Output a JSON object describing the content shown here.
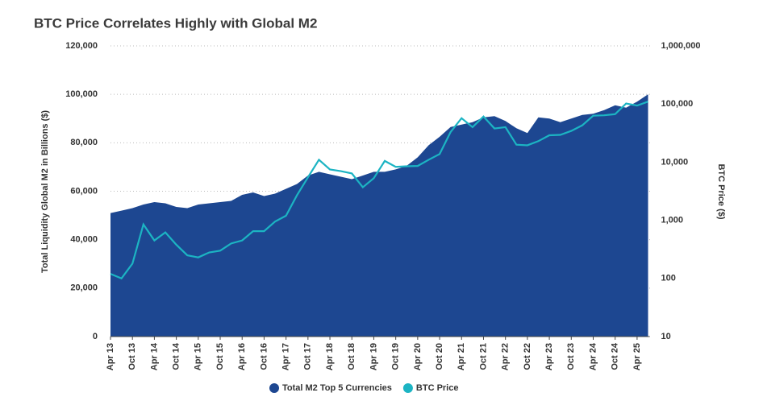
{
  "chart_data": {
    "type": "area-line",
    "title": "BTC Price Correlates Highly with Global M2",
    "y_label": "Total Liquidity Global M2 in Billions ($)",
    "y2_label": "BTC Price ($)",
    "y2_log": true,
    "grid": true,
    "legend": "bottom",
    "categories": [
      "Apr 13",
      null,
      "Oct 13",
      null,
      "Apr 14",
      null,
      "Oct 14",
      null,
      "Apr 15",
      null,
      "Oct 15",
      null,
      "Apr 16",
      null,
      "Oct 16",
      null,
      "Apr 17",
      null,
      "Oct 17",
      null,
      "Apr 18",
      null,
      "Oct 18",
      null,
      "Apr 19",
      null,
      "Oct 19",
      null,
      "Apr 20",
      null,
      "Oct 20",
      null,
      "Apr 21",
      null,
      "Oct 21",
      null,
      "Apr 22",
      null,
      "Oct 22",
      null,
      "Apr 23",
      null,
      "Oct 23",
      null,
      "Apr 24",
      null,
      "Oct 24",
      null,
      "Apr 25",
      null
    ],
    "series": [
      {
        "name": "Total M2 Top 5 Currencies",
        "color": "#1d4791",
        "kind": "area",
        "values": [
          51000,
          52000,
          53000,
          54500,
          55500,
          55000,
          53500,
          53000,
          54500,
          55000,
          55500,
          56000,
          58500,
          59500,
          58000,
          59000,
          61000,
          63000,
          66500,
          68000,
          67000,
          66000,
          65000,
          66500,
          68000,
          68000,
          69000,
          70500,
          74000,
          79000,
          82500,
          86500,
          87500,
          88500,
          90500,
          91000,
          89000,
          86000,
          84000,
          90500,
          90000,
          88500,
          90000,
          91500,
          92000,
          93500,
          95500,
          94500,
          97000,
          100000
        ]
      },
      {
        "name": "BTC Price",
        "color": "#1cb4c3",
        "kind": "line",
        "axis": "y2",
        "values": [
          120,
          100,
          180,
          850,
          450,
          620,
          380,
          250,
          230,
          280,
          300,
          400,
          450,
          650,
          650,
          950,
          1200,
          2700,
          5500,
          11000,
          7500,
          7000,
          6400,
          3700,
          5300,
          10500,
          8300,
          8500,
          8600,
          11000,
          13800,
          33000,
          57000,
          40000,
          61000,
          38000,
          40000,
          20000,
          19500,
          23000,
          29000,
          29500,
          34500,
          43000,
          63000,
          64000,
          67000,
          102000,
          94000,
          110000
        ]
      }
    ],
    "ylim": [
      0,
      120000
    ],
    "yticks": [
      0,
      {
        "value": 20000,
        "label": "20,000"
      },
      {
        "value": 40000,
        "label": "40,000"
      },
      {
        "value": 60000,
        "label": "60,000"
      },
      {
        "value": 80000,
        "label": "80,000"
      },
      {
        "value": 100000,
        "label": "100,000"
      },
      {
        "value": 120000,
        "label": "120,000"
      }
    ],
    "y2lim": [
      10,
      1000000
    ],
    "y2ticks": [
      10,
      100,
      {
        "value": 1000,
        "label": "1,000"
      },
      {
        "value": 10000,
        "label": "10,000"
      },
      {
        "value": 100000,
        "label": "100,000"
      },
      {
        "value": 1000000,
        "label": "1,000,000"
      }
    ]
  }
}
